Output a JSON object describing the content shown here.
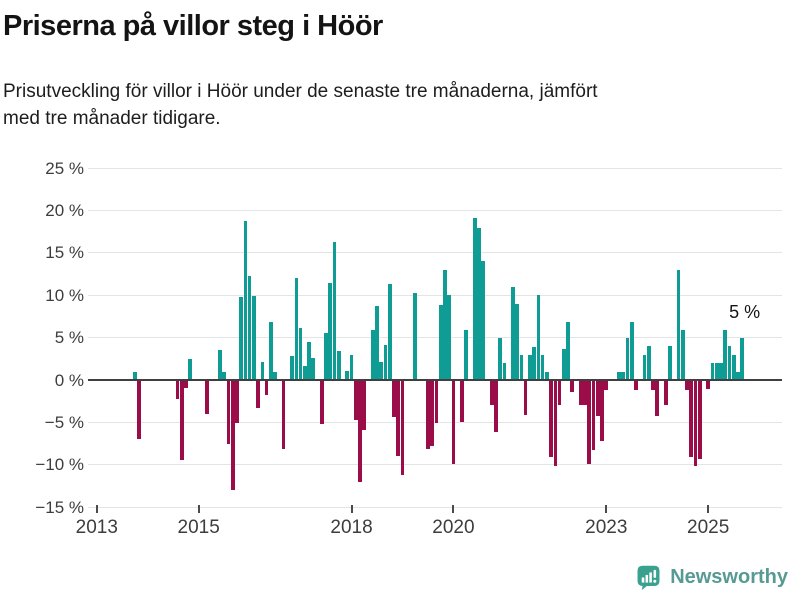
{
  "header": {
    "title": "Priserna på villor steg i Höör",
    "subtitle_line1": "Prisutveckling för villor i Höör under de senaste tre månaderna, jämfört",
    "subtitle_line2": "med tre månader tidigare."
  },
  "annotation": {
    "last_value_label": "5 %"
  },
  "footer": {
    "brand": "Newsworthy"
  },
  "colors": {
    "positive": "#0E9C94",
    "negative": "#9A0D49",
    "zero_axis": "#3f3f3f",
    "grid": "#e4e4e4",
    "tick_text": "#3d3d3d",
    "text": "#141414",
    "brand_icon": "#3BA18F",
    "brand_text": "#579A93"
  },
  "chart_data": {
    "type": "bar",
    "title": "Priserna på villor steg i Höör",
    "unit": "%",
    "grid": true,
    "y_axis": {
      "tick_values": [
        25,
        20,
        15,
        10,
        5,
        0,
        -5,
        -10,
        -15
      ],
      "tick_labels": [
        "25 %",
        "20 %",
        "15 %",
        "10 %",
        "5 %",
        "0 %",
        "−5 %",
        "−10 %",
        "−15 %"
      ],
      "range": [
        -15,
        25
      ]
    },
    "x_axis": {
      "tick_years": [
        2013,
        2015,
        2018,
        2020,
        2023,
        2025
      ],
      "tick_labels": [
        "2013",
        "2015",
        "2018",
        "2020",
        "2023",
        "2025"
      ],
      "range_years": [
        2012.8,
        2026.3
      ]
    },
    "series": [
      {
        "name": "Prisutveckling villor Höör, 3 mån jämfört med 3 mån tidigare",
        "points": [
          [
            "2013-10",
            1.0
          ],
          [
            "2013-11",
            -7.0
          ],
          [
            "2014-08",
            -2.3
          ],
          [
            "2014-09",
            -9.5
          ],
          [
            "2014-10",
            -1.0
          ],
          [
            "2014-11",
            2.5
          ],
          [
            "2015-03",
            -4.0
          ],
          [
            "2015-06",
            3.5
          ],
          [
            "2015-07",
            1.0
          ],
          [
            "2015-08",
            -7.5
          ],
          [
            "2015-09",
            -13.0
          ],
          [
            "2015-10",
            -5.1
          ],
          [
            "2015-11",
            9.8
          ],
          [
            "2015-12",
            18.8
          ],
          [
            "2016-01",
            12.3
          ],
          [
            "2016-02",
            9.9
          ],
          [
            "2016-03",
            -3.3
          ],
          [
            "2016-04",
            2.1
          ],
          [
            "2016-05",
            -1.8
          ],
          [
            "2016-06",
            6.8
          ],
          [
            "2016-07",
            0.9
          ],
          [
            "2016-09",
            -8.1
          ],
          [
            "2016-11",
            2.8
          ],
          [
            "2016-12",
            12.1
          ],
          [
            "2017-01",
            6.1
          ],
          [
            "2017-02",
            1.7
          ],
          [
            "2017-03",
            4.5
          ],
          [
            "2017-04",
            2.6
          ],
          [
            "2017-06",
            -5.2
          ],
          [
            "2017-07",
            5.5
          ],
          [
            "2017-08",
            11.4
          ],
          [
            "2017-09",
            16.3
          ],
          [
            "2017-10",
            3.4
          ],
          [
            "2017-12",
            1.1
          ],
          [
            "2018-01",
            3.0
          ],
          [
            "2018-02",
            -4.7
          ],
          [
            "2018-03",
            -12.0
          ],
          [
            "2018-04",
            -5.9
          ],
          [
            "2018-06",
            5.9
          ],
          [
            "2018-07",
            8.7
          ],
          [
            "2018-08",
            2.1
          ],
          [
            "2018-09",
            4.1
          ],
          [
            "2018-10",
            11.3
          ],
          [
            "2018-11",
            -4.4
          ],
          [
            "2018-12",
            -9.0
          ],
          [
            "2019-01",
            -11.2
          ],
          [
            "2019-04",
            10.3
          ],
          [
            "2019-07",
            -8.1
          ],
          [
            "2019-08",
            -7.8
          ],
          [
            "2019-09",
            -5.1
          ],
          [
            "2019-10",
            8.8
          ],
          [
            "2019-11",
            13.0
          ],
          [
            "2019-12",
            10.0
          ],
          [
            "2020-01",
            -9.9
          ],
          [
            "2020-03",
            -4.9
          ],
          [
            "2020-04",
            5.9
          ],
          [
            "2020-06",
            19.1
          ],
          [
            "2020-07",
            18.0
          ],
          [
            "2020-08",
            14.0
          ],
          [
            "2020-10",
            -2.9
          ],
          [
            "2020-11",
            -6.1
          ],
          [
            "2020-12",
            4.9
          ],
          [
            "2021-01",
            2.0
          ],
          [
            "2021-03",
            11.0
          ],
          [
            "2021-04",
            9.0
          ],
          [
            "2021-05",
            2.9
          ],
          [
            "2021-06",
            -4.1
          ],
          [
            "2021-07",
            2.9
          ],
          [
            "2021-08",
            3.9
          ],
          [
            "2021-09",
            10.0
          ],
          [
            "2021-10",
            2.9
          ],
          [
            "2021-11",
            0.9
          ],
          [
            "2021-12",
            -9.1
          ],
          [
            "2022-01",
            -10.1
          ],
          [
            "2022-02",
            -2.9
          ],
          [
            "2022-03",
            3.7
          ],
          [
            "2022-04",
            6.9
          ],
          [
            "2022-05",
            -1.4
          ],
          [
            "2022-07",
            -2.9
          ],
          [
            "2022-08",
            -2.9
          ],
          [
            "2022-09",
            -9.9
          ],
          [
            "2022-10",
            -8.3
          ],
          [
            "2022-11",
            -4.2
          ],
          [
            "2022-12",
            -7.2
          ],
          [
            "2023-01",
            -1.2
          ],
          [
            "2023-04",
            0.9
          ],
          [
            "2023-05",
            0.9
          ],
          [
            "2023-06",
            4.9
          ],
          [
            "2023-07",
            6.9
          ],
          [
            "2023-08",
            -1.2
          ],
          [
            "2023-10",
            3.0
          ],
          [
            "2023-11",
            4.0
          ],
          [
            "2023-12",
            -1.2
          ],
          [
            "2024-01",
            -4.2
          ],
          [
            "2024-03",
            -2.9
          ],
          [
            "2024-04",
            4.0
          ],
          [
            "2024-06",
            13.0
          ],
          [
            "2024-07",
            5.9
          ],
          [
            "2024-08",
            -1.2
          ],
          [
            "2024-09",
            -9.1
          ],
          [
            "2024-10",
            -10.1
          ],
          [
            "2024-11",
            -9.3
          ],
          [
            "2025-01",
            -1.1
          ],
          [
            "2025-02",
            2.0
          ],
          [
            "2025-03",
            2.0
          ],
          [
            "2025-04",
            2.0
          ],
          [
            "2025-05",
            5.9
          ],
          [
            "2025-06",
            4.0
          ],
          [
            "2025-07",
            3.0
          ],
          [
            "2025-08",
            0.9
          ],
          [
            "2025-09",
            4.9
          ]
        ]
      }
    ]
  }
}
